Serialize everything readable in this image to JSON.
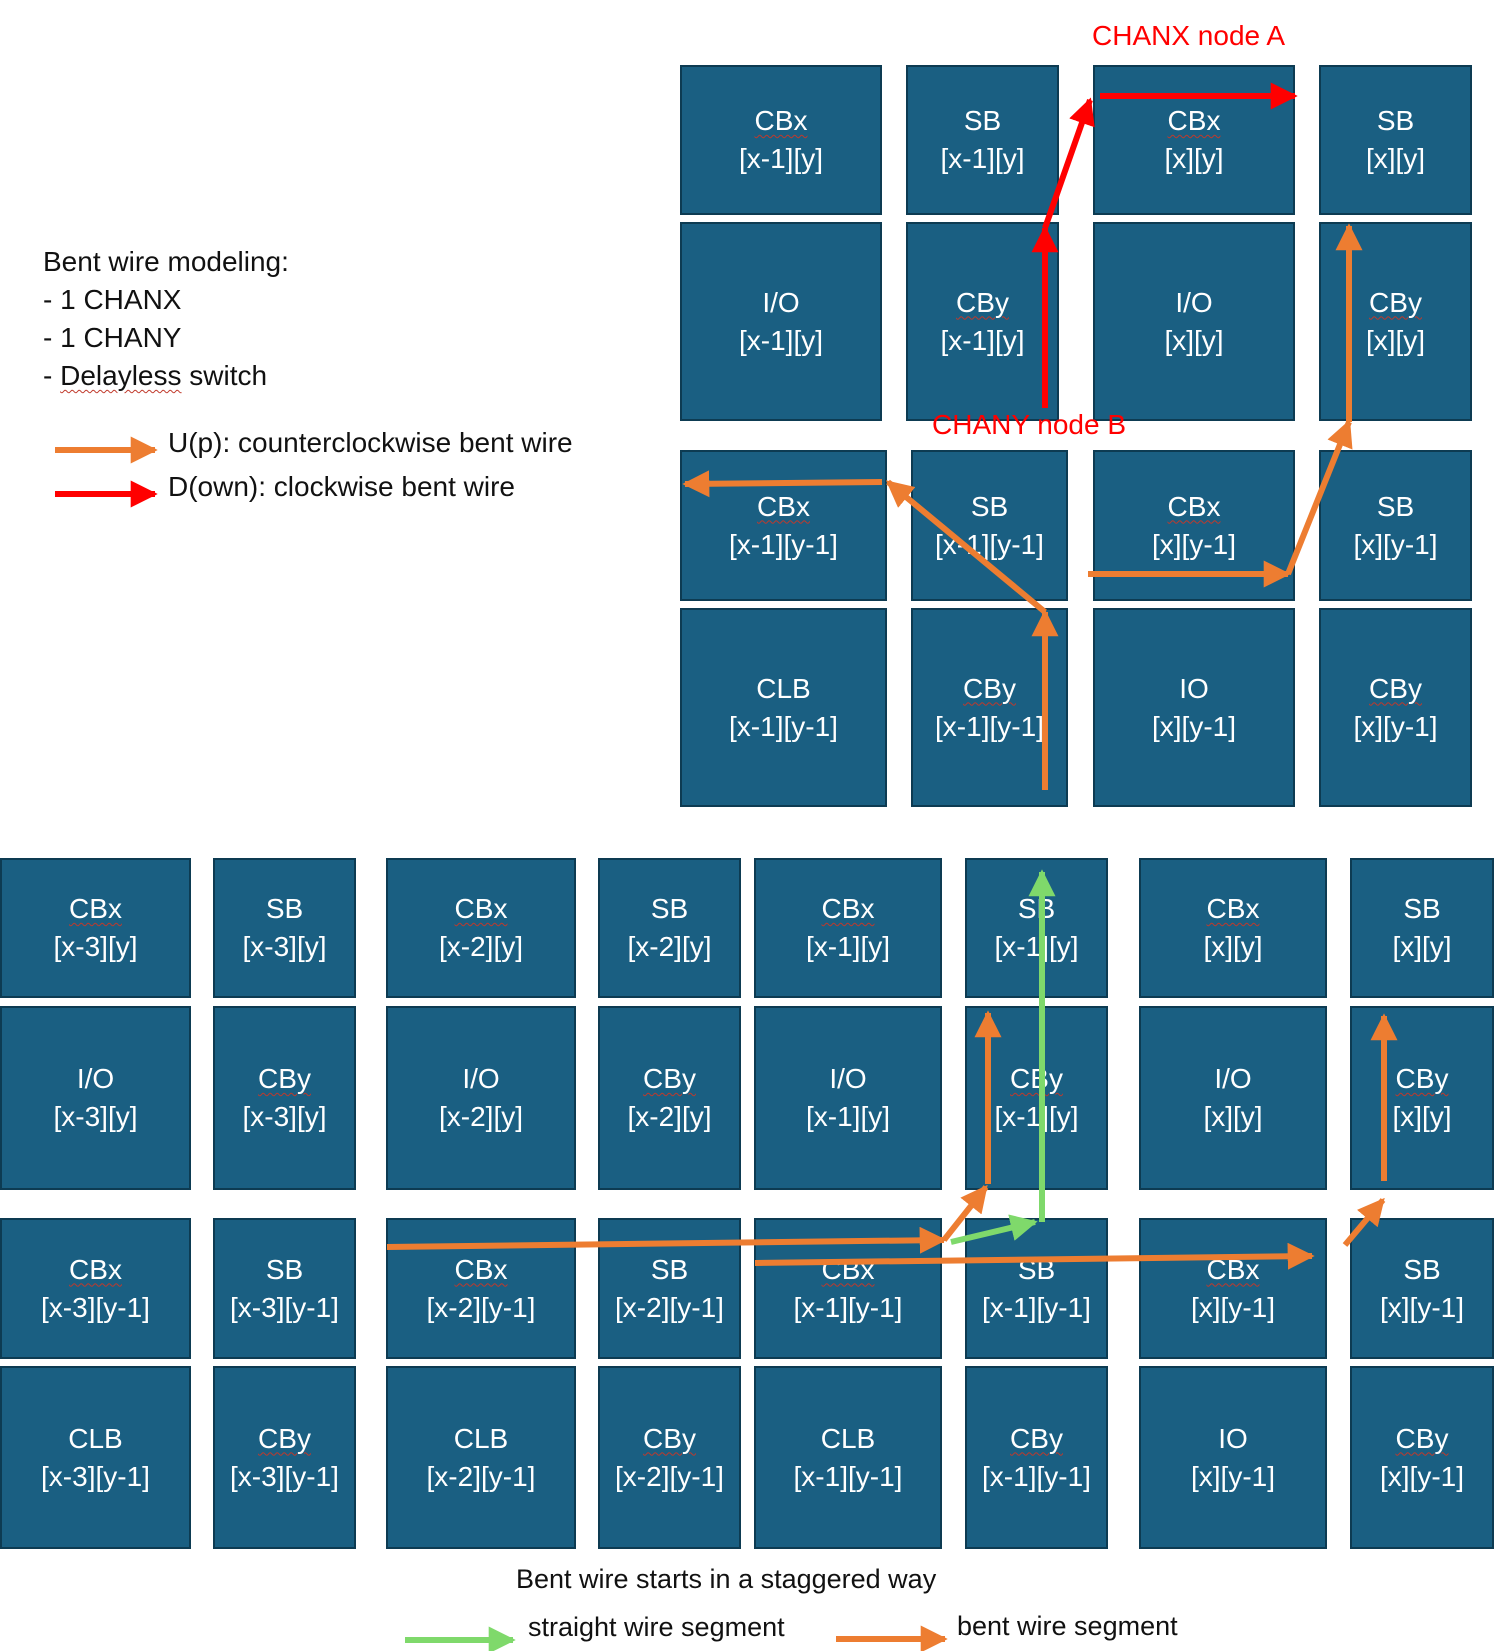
{
  "colors": {
    "tile": "#1a5f82",
    "tile_border": "#0d3b52",
    "orange": "#ed7d31",
    "red": "#ff0000",
    "green": "#7fd96b"
  },
  "legend": {
    "title": "Bent wire modeling:",
    "items": [
      "- 1 CHANX",
      "- 1 CHANY",
      "- Delayless switch"
    ],
    "up_label": "U(p): counterclockwise bent wire",
    "down_label": "D(own): clockwise bent wire"
  },
  "labels": {
    "chanx_node": "CHANX node A",
    "chany_node": "CHANY node B"
  },
  "top_grid": [
    {
      "name": "CBx",
      "coord": "[x-1][y]"
    },
    {
      "name": "SB",
      "coord": "[x-1][y]"
    },
    {
      "name": "CBx",
      "coord": "[x][y]"
    },
    {
      "name": "SB",
      "coord": "[x][y]"
    },
    {
      "name": "I/O",
      "coord": "[x-1][y]"
    },
    {
      "name": "CBy",
      "coord": "[x-1][y]"
    },
    {
      "name": "I/O",
      "coord": "[x][y]"
    },
    {
      "name": "CBy",
      "coord": "[x][y]"
    },
    {
      "name": "CBx",
      "coord": "[x-1][y-1]"
    },
    {
      "name": "SB",
      "coord": "[x-1][y-1]"
    },
    {
      "name": "CBx",
      "coord": "[x][y-1]"
    },
    {
      "name": "SB",
      "coord": "[x][y-1]"
    },
    {
      "name": "CLB",
      "coord": "[x-1][y-1]"
    },
    {
      "name": "CBy",
      "coord": "[x-1][y-1]"
    },
    {
      "name": "IO",
      "coord": "[x][y-1]"
    },
    {
      "name": "CBy",
      "coord": "[x][y-1]"
    }
  ],
  "bottom_grid": [
    {
      "name": "CBx",
      "coord": "[x-3][y]"
    },
    {
      "name": "SB",
      "coord": "[x-3][y]"
    },
    {
      "name": "CBx",
      "coord": "[x-2][y]"
    },
    {
      "name": "SB",
      "coord": "[x-2][y]"
    },
    {
      "name": "CBx",
      "coord": "[x-1][y]"
    },
    {
      "name": "SB",
      "coord": "[x-1][y]"
    },
    {
      "name": "CBx",
      "coord": "[x][y]"
    },
    {
      "name": "SB",
      "coord": "[x][y]"
    },
    {
      "name": "I/O",
      "coord": "[x-3][y]"
    },
    {
      "name": "CBy",
      "coord": "[x-3][y]"
    },
    {
      "name": "I/O",
      "coord": "[x-2][y]"
    },
    {
      "name": "CBy",
      "coord": "[x-2][y]"
    },
    {
      "name": "I/O",
      "coord": "[x-1][y]"
    },
    {
      "name": "CBy",
      "coord": "[x-1][y]"
    },
    {
      "name": "I/O",
      "coord": "[x][y]"
    },
    {
      "name": "CBy",
      "coord": "[x][y]"
    },
    {
      "name": "CBx",
      "coord": "[x-3][y-1]"
    },
    {
      "name": "SB",
      "coord": "[x-3][y-1]"
    },
    {
      "name": "CBx",
      "coord": "[x-2][y-1]"
    },
    {
      "name": "SB",
      "coord": "[x-2][y-1]"
    },
    {
      "name": "CBx",
      "coord": "[x-1][y-1]"
    },
    {
      "name": "SB",
      "coord": "[x-1][y-1]"
    },
    {
      "name": "CBx",
      "coord": "[x][y-1]"
    },
    {
      "name": "SB",
      "coord": "[x][y-1]"
    },
    {
      "name": "CLB",
      "coord": "[x-3][y-1]"
    },
    {
      "name": "CBy",
      "coord": "[x-3][y-1]"
    },
    {
      "name": "CLB",
      "coord": "[x-2][y-1]"
    },
    {
      "name": "CBy",
      "coord": "[x-2][y-1]"
    },
    {
      "name": "CLB",
      "coord": "[x-1][y-1]"
    },
    {
      "name": "CBy",
      "coord": "[x-1][y-1]"
    },
    {
      "name": "IO",
      "coord": "[x][y-1]"
    },
    {
      "name": "CBy",
      "coord": "[x][y-1]"
    }
  ],
  "bottom_caption": "Bent wire starts in a staggered way",
  "bottom_legend": {
    "straight_label": "straight wire segment",
    "bent_label": "bent wire segment"
  }
}
